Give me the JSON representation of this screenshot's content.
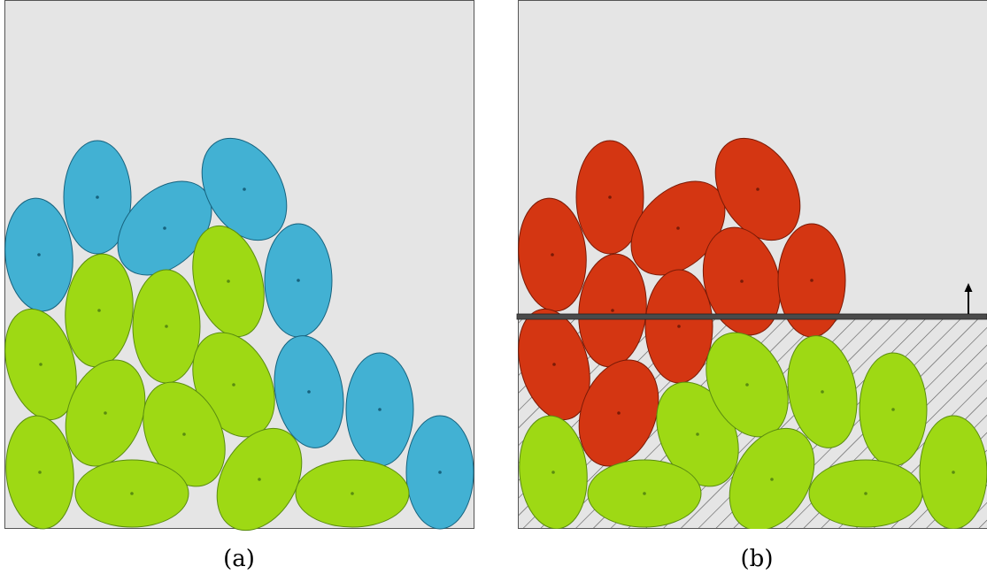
{
  "panels": [
    {
      "label": "(a)",
      "particles": [
        {
          "group": "upper"
        },
        {
          "group": "upper"
        },
        {
          "group": "upper"
        },
        {
          "group": "upper"
        },
        {
          "group": "upper"
        },
        {
          "group": "upper"
        },
        {
          "group": "upper"
        },
        {
          "group": "upper"
        },
        {
          "group": "lower"
        },
        {
          "group": "lower"
        },
        {
          "group": "lower"
        },
        {
          "group": "lower"
        },
        {
          "group": "lower"
        },
        {
          "group": "lower"
        },
        {
          "group": "lower"
        },
        {
          "group": "lower"
        },
        {
          "group": "lower"
        },
        {
          "group": "lower"
        },
        {
          "group": "lower"
        },
        {
          "group": "lower"
        },
        {
          "group": "lower"
        },
        {
          "group": "lower"
        }
      ]
    },
    {
      "label": "(b)",
      "particles": [
        {
          "group": "upper"
        },
        {
          "group": "upper"
        },
        {
          "group": "upper"
        },
        {
          "group": "upper"
        },
        {
          "group": "upper"
        },
        {
          "group": "upper"
        },
        {
          "group": "upper"
        },
        {
          "group": "upper"
        },
        {
          "group": "upper"
        },
        {
          "group": "upper"
        },
        {
          "group": "upper"
        },
        {
          "group": "lower"
        },
        {
          "group": "lower"
        },
        {
          "group": "lower"
        },
        {
          "group": "lower"
        },
        {
          "group": "lower"
        },
        {
          "group": "lower"
        },
        {
          "group": "lower"
        },
        {
          "group": "lower"
        },
        {
          "group": "lower"
        },
        {
          "group": "lower"
        },
        {
          "group": "lower"
        }
      ],
      "has_moving_plate": true,
      "has_hatched_region": true
    }
  ],
  "colors": {
    "background": "#e5e5e5",
    "panel_border": "#555555",
    "blue_fill": "#42b1d3",
    "blue_stroke": "#16627e",
    "green_fill": "#9ed914",
    "green_stroke": "#5a8c10",
    "red_fill": "#d43612",
    "red_stroke": "#7a1a06",
    "plate": "#4a4a4a",
    "hatch": "#555555"
  }
}
